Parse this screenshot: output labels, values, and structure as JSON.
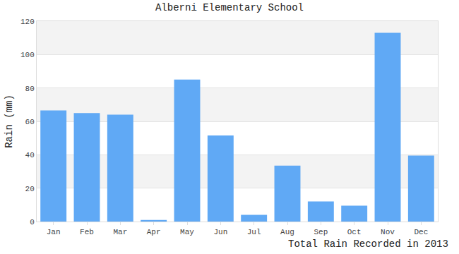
{
  "chart_data": {
    "type": "bar",
    "title": "Alberni Elementary School",
    "x_label": "Total Rain Recorded in 2013",
    "y_label": "Rain (mm)",
    "categories": [
      "Jan",
      "Feb",
      "Mar",
      "Apr",
      "May",
      "Jun",
      "Jul",
      "Aug",
      "Sep",
      "Oct",
      "Nov",
      "Dec"
    ],
    "values": [
      66.5,
      65,
      64,
      1,
      85,
      51.5,
      4,
      33.5,
      12,
      9.5,
      113,
      39.5
    ],
    "color": "#60a9f5",
    "ylim": [
      0,
      120
    ],
    "yticks": [
      0,
      20,
      40,
      60,
      80,
      100,
      120
    ],
    "grid": true
  }
}
